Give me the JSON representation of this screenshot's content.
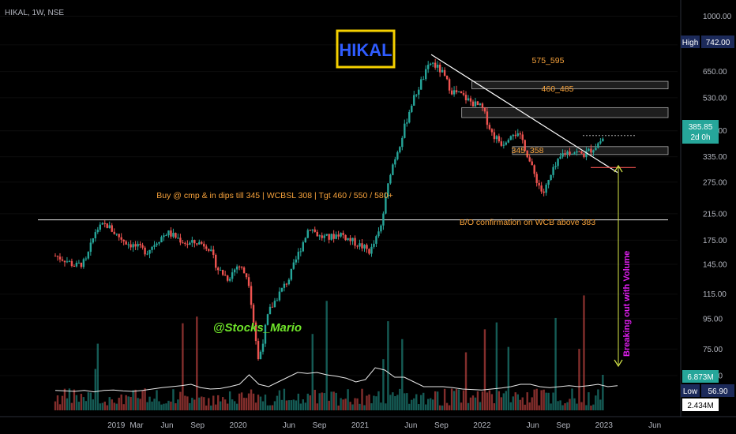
{
  "symbol_header": "HIKAL, 1W, NSE",
  "logo_label": "HIKAL",
  "watermark": "@Stocks_Mario",
  "annotations": {
    "buy_note": "Buy @ cmp & in dips till 345 | WCBSL 308 | Tgt 460 / 550 / 580+",
    "zone_top": "575_595",
    "zone_mid": "460_485",
    "zone_low": "345_358",
    "breakout_note": "B/O confirmation on WCB above 383",
    "volume_note": "Breaking out with Volume"
  },
  "price_labels": {
    "high_label": "High",
    "high_value": "742.00",
    "last_value": "385.85",
    "countdown": "2d 0h",
    "low_label": "Low",
    "low_value": "56.90",
    "volume_value": "6.873M",
    "volume_avg_value": "2.434M"
  },
  "y_ticks": [
    "1000.00",
    "800.00",
    "650.00",
    "530.00",
    "410.00",
    "335.00",
    "275.00",
    "215.00",
    "175.00",
    "145.00",
    "115.00",
    "95.00",
    "75.00",
    "61.00"
  ],
  "x_ticks": [
    "2019",
    "Mar",
    "Jun",
    "Sep",
    "2020",
    "Jun",
    "Sep",
    "2021",
    "Jun",
    "Sep",
    "2022",
    "Jun",
    "Sep",
    "2023",
    "Jun"
  ],
  "colors": {
    "up": "#26a69a",
    "down": "#ef5350",
    "orange": "#f7a23b",
    "logo_border": "#f5d000",
    "logo_text": "#2f5cff",
    "watermark": "#6fe52a",
    "magenta": "#e01ef0",
    "arrow": "#d7e84a"
  },
  "chart_data": {
    "type": "candlestick",
    "title": "HIKAL, 1W, NSE",
    "y_scale": "log",
    "ylim": [
      52,
      1080
    ],
    "x_range": [
      "2018-07",
      "2023-07"
    ],
    "series": [
      {
        "name": "price",
        "points": [
          [
            "2018-07",
            155
          ],
          [
            "2018-08",
            150
          ],
          [
            "2018-09",
            143
          ],
          [
            "2018-10",
            148
          ],
          [
            "2018-11",
            190
          ],
          [
            "2018-12",
            198
          ],
          [
            "2019-01",
            183
          ],
          [
            "2019-02",
            172
          ],
          [
            "2019-03",
            166
          ],
          [
            "2019-04",
            160
          ],
          [
            "2019-05",
            174
          ],
          [
            "2019-06",
            186
          ],
          [
            "2019-07",
            178
          ],
          [
            "2019-08",
            170
          ],
          [
            "2019-09",
            172
          ],
          [
            "2019-10",
            168
          ],
          [
            "2019-11",
            140
          ],
          [
            "2019-12",
            130
          ],
          [
            "2020-01",
            145
          ],
          [
            "2020-02",
            130
          ],
          [
            "2020-03",
            68
          ],
          [
            "2020-04",
            100
          ],
          [
            "2020-05",
            115
          ],
          [
            "2020-06",
            130
          ],
          [
            "2020-07",
            160
          ],
          [
            "2020-08",
            195
          ],
          [
            "2020-09",
            180
          ],
          [
            "2020-10",
            178
          ],
          [
            "2020-11",
            185
          ],
          [
            "2020-12",
            175
          ],
          [
            "2021-01",
            168
          ],
          [
            "2021-02",
            160
          ],
          [
            "2021-03",
            190
          ],
          [
            "2021-04",
            300
          ],
          [
            "2021-05",
            380
          ],
          [
            "2021-06",
            500
          ],
          [
            "2021-07",
            600
          ],
          [
            "2021-08",
            700
          ],
          [
            "2021-09",
            650
          ],
          [
            "2021-10",
            560
          ],
          [
            "2021-11",
            540
          ],
          [
            "2021-12",
            510
          ],
          [
            "2022-01",
            490
          ],
          [
            "2022-02",
            400
          ],
          [
            "2022-03",
            370
          ],
          [
            "2022-04",
            410
          ],
          [
            "2022-05",
            380
          ],
          [
            "2022-06",
            300
          ],
          [
            "2022-07",
            250
          ],
          [
            "2022-08",
            300
          ],
          [
            "2022-09",
            345
          ],
          [
            "2022-10",
            350
          ],
          [
            "2022-11",
            340
          ],
          [
            "2022-12",
            360
          ],
          [
            "2022-12-28",
            385.85
          ]
        ]
      },
      {
        "name": "volume_avg",
        "values": [
          0.42,
          0.41,
          0.4,
          0.42,
          0.39,
          0.42,
          0.43,
          0.41,
          0.4,
          0.42,
          0.45,
          0.48,
          0.5,
          0.52,
          0.55,
          0.48,
          0.45,
          0.46,
          0.5,
          0.55,
          0.75,
          0.55,
          0.5,
          0.6,
          0.7,
          0.8,
          0.78,
          0.8,
          0.75,
          0.72,
          0.68,
          0.6,
          0.65,
          0.9,
          0.85,
          0.7,
          0.7,
          0.6,
          0.5,
          0.5,
          0.5,
          0.48,
          0.45,
          0.44,
          0.43,
          0.45,
          0.47,
          0.5,
          0.55,
          0.55,
          0.5,
          0.48,
          0.5,
          0.52,
          0.5,
          0.52,
          0.55,
          0.5,
          0.52
        ]
      }
    ],
    "levels": [
      {
        "name": "575_595",
        "low": 575,
        "high": 595
      },
      {
        "name": "460_485",
        "low": 460,
        "high": 485
      },
      {
        "name": "345_358",
        "low": 345,
        "high": 358
      },
      {
        "name": "breakout_line",
        "value": 205
      }
    ],
    "trendline": [
      [
        "2021-08",
        742
      ],
      [
        "2022-12",
        315
      ]
    ],
    "high": 742.0,
    "low": 56.9,
    "last": 385.85,
    "last_volume_m": 6.873,
    "volume_avg_m": 2.434
  }
}
